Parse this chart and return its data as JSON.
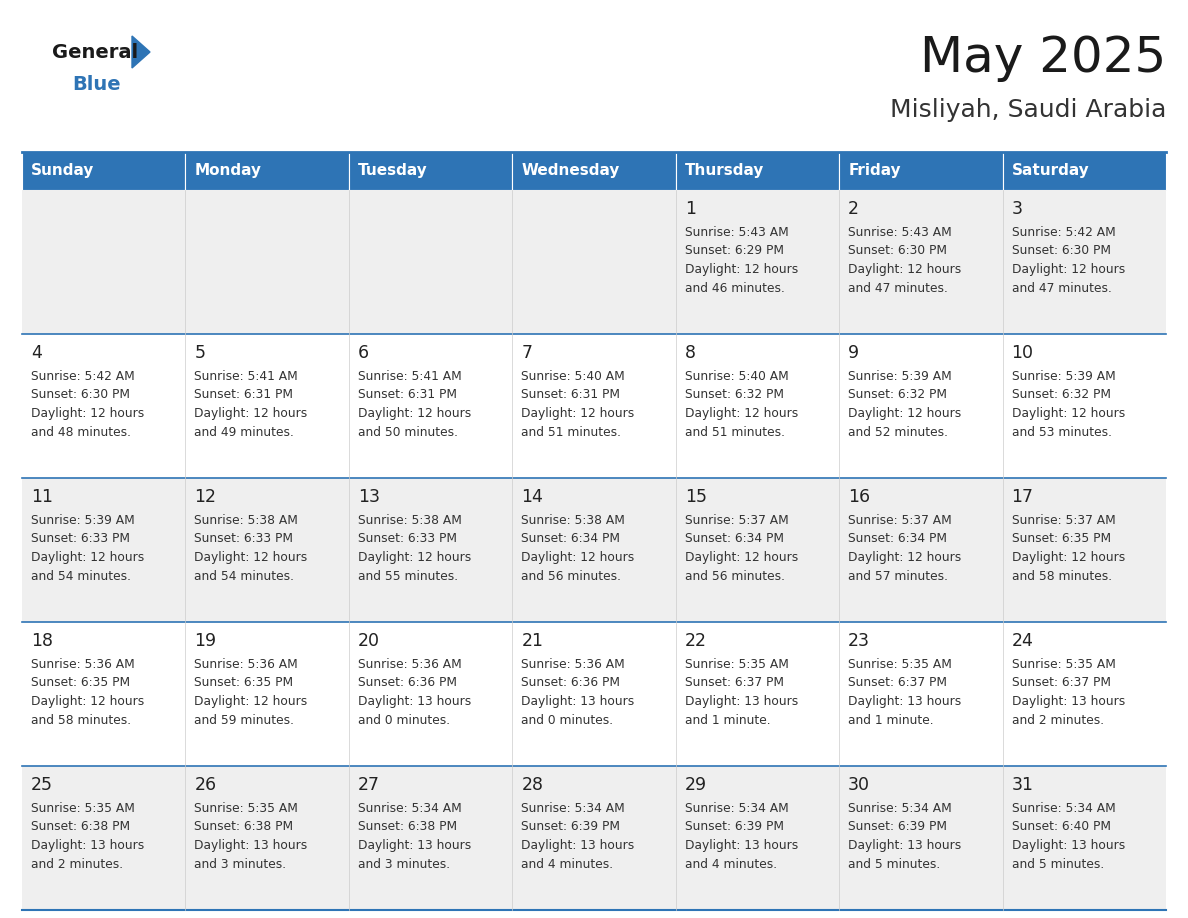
{
  "title": "May 2025",
  "subtitle": "Misliyah, Saudi Arabia",
  "header_bg": "#2E74B5",
  "header_text_color": "#FFFFFF",
  "days_header": [
    "Sunday",
    "Monday",
    "Tuesday",
    "Wednesday",
    "Thursday",
    "Friday",
    "Saturday"
  ],
  "row_bg_light": "#EFEFEF",
  "row_bg_white": "#FFFFFF",
  "cell_text_color": "#222222",
  "grid_line_color": "#2E74B5",
  "logo_general_color": "#1a1a1a",
  "logo_blue_color": "#2E74B5",
  "logo_triangle_color": "#2E74B5",
  "weeks": [
    [
      {
        "day": "",
        "sunrise": "",
        "sunset": "",
        "daylight1": "",
        "daylight2": ""
      },
      {
        "day": "",
        "sunrise": "",
        "sunset": "",
        "daylight1": "",
        "daylight2": ""
      },
      {
        "day": "",
        "sunrise": "",
        "sunset": "",
        "daylight1": "",
        "daylight2": ""
      },
      {
        "day": "",
        "sunrise": "",
        "sunset": "",
        "daylight1": "",
        "daylight2": ""
      },
      {
        "day": "1",
        "sunrise": "Sunrise: 5:43 AM",
        "sunset": "Sunset: 6:29 PM",
        "daylight1": "Daylight: 12 hours",
        "daylight2": "and 46 minutes."
      },
      {
        "day": "2",
        "sunrise": "Sunrise: 5:43 AM",
        "sunset": "Sunset: 6:30 PM",
        "daylight1": "Daylight: 12 hours",
        "daylight2": "and 47 minutes."
      },
      {
        "day": "3",
        "sunrise": "Sunrise: 5:42 AM",
        "sunset": "Sunset: 6:30 PM",
        "daylight1": "Daylight: 12 hours",
        "daylight2": "and 47 minutes."
      }
    ],
    [
      {
        "day": "4",
        "sunrise": "Sunrise: 5:42 AM",
        "sunset": "Sunset: 6:30 PM",
        "daylight1": "Daylight: 12 hours",
        "daylight2": "and 48 minutes."
      },
      {
        "day": "5",
        "sunrise": "Sunrise: 5:41 AM",
        "sunset": "Sunset: 6:31 PM",
        "daylight1": "Daylight: 12 hours",
        "daylight2": "and 49 minutes."
      },
      {
        "day": "6",
        "sunrise": "Sunrise: 5:41 AM",
        "sunset": "Sunset: 6:31 PM",
        "daylight1": "Daylight: 12 hours",
        "daylight2": "and 50 minutes."
      },
      {
        "day": "7",
        "sunrise": "Sunrise: 5:40 AM",
        "sunset": "Sunset: 6:31 PM",
        "daylight1": "Daylight: 12 hours",
        "daylight2": "and 51 minutes."
      },
      {
        "day": "8",
        "sunrise": "Sunrise: 5:40 AM",
        "sunset": "Sunset: 6:32 PM",
        "daylight1": "Daylight: 12 hours",
        "daylight2": "and 51 minutes."
      },
      {
        "day": "9",
        "sunrise": "Sunrise: 5:39 AM",
        "sunset": "Sunset: 6:32 PM",
        "daylight1": "Daylight: 12 hours",
        "daylight2": "and 52 minutes."
      },
      {
        "day": "10",
        "sunrise": "Sunrise: 5:39 AM",
        "sunset": "Sunset: 6:32 PM",
        "daylight1": "Daylight: 12 hours",
        "daylight2": "and 53 minutes."
      }
    ],
    [
      {
        "day": "11",
        "sunrise": "Sunrise: 5:39 AM",
        "sunset": "Sunset: 6:33 PM",
        "daylight1": "Daylight: 12 hours",
        "daylight2": "and 54 minutes."
      },
      {
        "day": "12",
        "sunrise": "Sunrise: 5:38 AM",
        "sunset": "Sunset: 6:33 PM",
        "daylight1": "Daylight: 12 hours",
        "daylight2": "and 54 minutes."
      },
      {
        "day": "13",
        "sunrise": "Sunrise: 5:38 AM",
        "sunset": "Sunset: 6:33 PM",
        "daylight1": "Daylight: 12 hours",
        "daylight2": "and 55 minutes."
      },
      {
        "day": "14",
        "sunrise": "Sunrise: 5:38 AM",
        "sunset": "Sunset: 6:34 PM",
        "daylight1": "Daylight: 12 hours",
        "daylight2": "and 56 minutes."
      },
      {
        "day": "15",
        "sunrise": "Sunrise: 5:37 AM",
        "sunset": "Sunset: 6:34 PM",
        "daylight1": "Daylight: 12 hours",
        "daylight2": "and 56 minutes."
      },
      {
        "day": "16",
        "sunrise": "Sunrise: 5:37 AM",
        "sunset": "Sunset: 6:34 PM",
        "daylight1": "Daylight: 12 hours",
        "daylight2": "and 57 minutes."
      },
      {
        "day": "17",
        "sunrise": "Sunrise: 5:37 AM",
        "sunset": "Sunset: 6:35 PM",
        "daylight1": "Daylight: 12 hours",
        "daylight2": "and 58 minutes."
      }
    ],
    [
      {
        "day": "18",
        "sunrise": "Sunrise: 5:36 AM",
        "sunset": "Sunset: 6:35 PM",
        "daylight1": "Daylight: 12 hours",
        "daylight2": "and 58 minutes."
      },
      {
        "day": "19",
        "sunrise": "Sunrise: 5:36 AM",
        "sunset": "Sunset: 6:35 PM",
        "daylight1": "Daylight: 12 hours",
        "daylight2": "and 59 minutes."
      },
      {
        "day": "20",
        "sunrise": "Sunrise: 5:36 AM",
        "sunset": "Sunset: 6:36 PM",
        "daylight1": "Daylight: 13 hours",
        "daylight2": "and 0 minutes."
      },
      {
        "day": "21",
        "sunrise": "Sunrise: 5:36 AM",
        "sunset": "Sunset: 6:36 PM",
        "daylight1": "Daylight: 13 hours",
        "daylight2": "and 0 minutes."
      },
      {
        "day": "22",
        "sunrise": "Sunrise: 5:35 AM",
        "sunset": "Sunset: 6:37 PM",
        "daylight1": "Daylight: 13 hours",
        "daylight2": "and 1 minute."
      },
      {
        "day": "23",
        "sunrise": "Sunrise: 5:35 AM",
        "sunset": "Sunset: 6:37 PM",
        "daylight1": "Daylight: 13 hours",
        "daylight2": "and 1 minute."
      },
      {
        "day": "24",
        "sunrise": "Sunrise: 5:35 AM",
        "sunset": "Sunset: 6:37 PM",
        "daylight1": "Daylight: 13 hours",
        "daylight2": "and 2 minutes."
      }
    ],
    [
      {
        "day": "25",
        "sunrise": "Sunrise: 5:35 AM",
        "sunset": "Sunset: 6:38 PM",
        "daylight1": "Daylight: 13 hours",
        "daylight2": "and 2 minutes."
      },
      {
        "day": "26",
        "sunrise": "Sunrise: 5:35 AM",
        "sunset": "Sunset: 6:38 PM",
        "daylight1": "Daylight: 13 hours",
        "daylight2": "and 3 minutes."
      },
      {
        "day": "27",
        "sunrise": "Sunrise: 5:34 AM",
        "sunset": "Sunset: 6:38 PM",
        "daylight1": "Daylight: 13 hours",
        "daylight2": "and 3 minutes."
      },
      {
        "day": "28",
        "sunrise": "Sunrise: 5:34 AM",
        "sunset": "Sunset: 6:39 PM",
        "daylight1": "Daylight: 13 hours",
        "daylight2": "and 4 minutes."
      },
      {
        "day": "29",
        "sunrise": "Sunrise: 5:34 AM",
        "sunset": "Sunset: 6:39 PM",
        "daylight1": "Daylight: 13 hours",
        "daylight2": "and 4 minutes."
      },
      {
        "day": "30",
        "sunrise": "Sunrise: 5:34 AM",
        "sunset": "Sunset: 6:39 PM",
        "daylight1": "Daylight: 13 hours",
        "daylight2": "and 5 minutes."
      },
      {
        "day": "31",
        "sunrise": "Sunrise: 5:34 AM",
        "sunset": "Sunset: 6:40 PM",
        "daylight1": "Daylight: 13 hours",
        "daylight2": "and 5 minutes."
      }
    ]
  ]
}
